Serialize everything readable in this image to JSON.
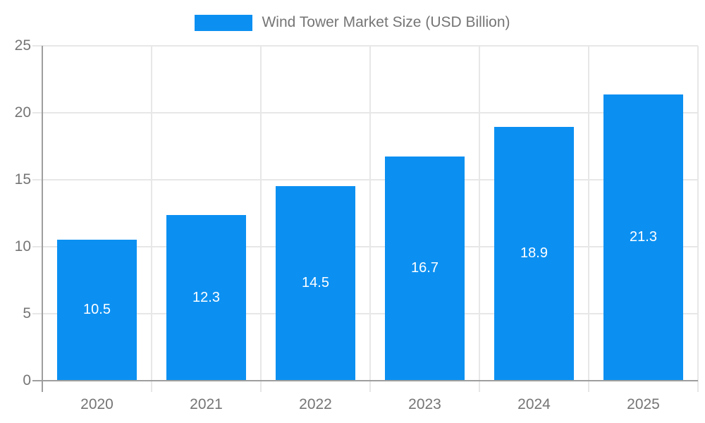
{
  "chart_data": {
    "type": "bar",
    "title": "Wind Tower Market Size (USD Billion)",
    "legend": {
      "position": "top-center",
      "entries": [
        "Wind Tower Market Size (USD Billion)"
      ]
    },
    "categories": [
      "2020",
      "2021",
      "2022",
      "2023",
      "2024",
      "2025"
    ],
    "values": [
      10.5,
      12.3,
      14.5,
      16.7,
      18.9,
      21.3
    ],
    "series": [
      {
        "name": "Wind Tower Market Size (USD Billion)",
        "color": "#0b90f2",
        "values": [
          10.5,
          12.3,
          14.5,
          16.7,
          18.9,
          21.3
        ]
      }
    ],
    "xlabel": "",
    "ylabel": "",
    "ylim": [
      0,
      25
    ],
    "yticks": [
      0,
      5,
      10,
      15,
      20,
      25
    ],
    "grid": true,
    "value_label_position": "inside-center",
    "value_label_color": "#ffffff",
    "colors": {
      "bar": "#0b90f2",
      "axis": "#9e9e9e",
      "gridline": "#e7e7e7",
      "tick_text": "#757575",
      "background": "#ffffff"
    }
  }
}
